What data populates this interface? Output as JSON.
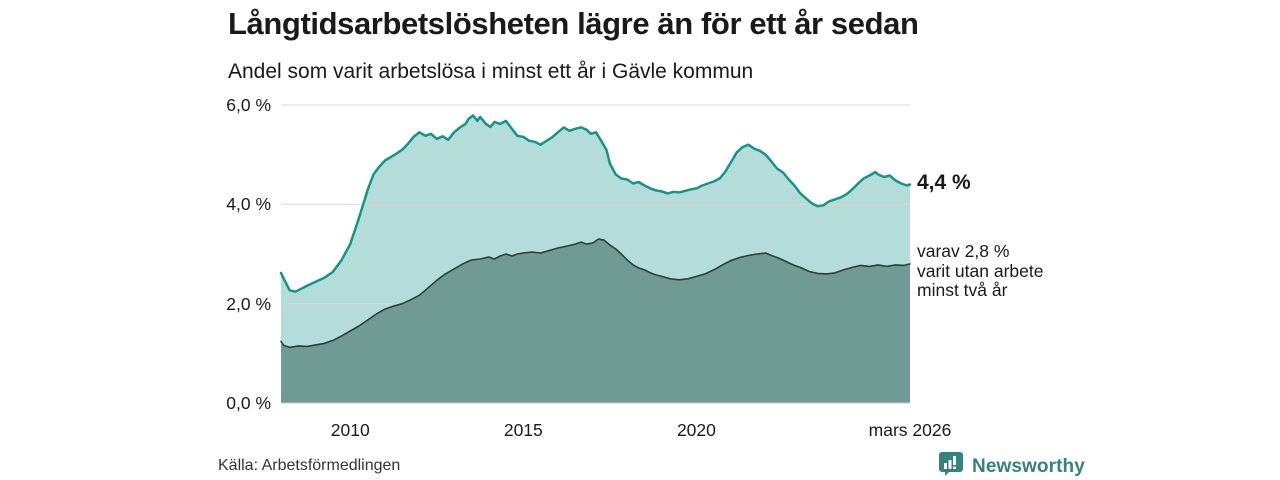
{
  "header": {
    "title": "Långtidsarbetslösheten lägre än för ett år sedan",
    "subtitle": "Andel som varit arbetslösa i minst ett år i Gävle kommun"
  },
  "chart_data": {
    "type": "area",
    "title": "Långtidsarbetslösheten lägre än för ett år sedan",
    "xlabel": "",
    "ylabel": "",
    "x_axis": {
      "range": [
        2008.0,
        2026.17
      ],
      "ticks": [
        {
          "label": "2010",
          "x": 2010
        },
        {
          "label": "2015",
          "x": 2015
        },
        {
          "label": "2020",
          "x": 2020
        },
        {
          "label": "mars 2026",
          "x": 2026.17
        }
      ]
    },
    "y_axis": {
      "range": [
        0,
        6
      ],
      "grid": true,
      "gridline_color": "#d8d8d8",
      "baseline_color": "#c9c9c9",
      "ticks": [
        {
          "label": "0,0 %",
          "value": 0
        },
        {
          "label": "2,0 %",
          "value": 2
        },
        {
          "label": "4,0 %",
          "value": 4
        },
        {
          "label": "6,0 %",
          "value": 6
        }
      ]
    },
    "series": [
      {
        "name": "minst ett år",
        "latest_value_pct": 4.4,
        "line_color": "#17948a",
        "fill_color": "rgba(23,148,138,0.32)",
        "line_width": 2.5,
        "points": [
          [
            2008.0,
            2.62
          ],
          [
            2008.08,
            2.5
          ],
          [
            2008.25,
            2.27
          ],
          [
            2008.42,
            2.24
          ],
          [
            2008.58,
            2.3
          ],
          [
            2008.75,
            2.36
          ],
          [
            2009.0,
            2.44
          ],
          [
            2009.25,
            2.52
          ],
          [
            2009.5,
            2.64
          ],
          [
            2009.75,
            2.88
          ],
          [
            2010.0,
            3.2
          ],
          [
            2010.25,
            3.72
          ],
          [
            2010.5,
            4.28
          ],
          [
            2010.67,
            4.6
          ],
          [
            2010.83,
            4.75
          ],
          [
            2011.0,
            4.88
          ],
          [
            2011.17,
            4.95
          ],
          [
            2011.33,
            5.02
          ],
          [
            2011.5,
            5.1
          ],
          [
            2011.67,
            5.22
          ],
          [
            2011.83,
            5.36
          ],
          [
            2012.0,
            5.45
          ],
          [
            2012.17,
            5.38
          ],
          [
            2012.33,
            5.42
          ],
          [
            2012.5,
            5.32
          ],
          [
            2012.67,
            5.37
          ],
          [
            2012.83,
            5.3
          ],
          [
            2013.0,
            5.45
          ],
          [
            2013.17,
            5.55
          ],
          [
            2013.33,
            5.62
          ],
          [
            2013.42,
            5.72
          ],
          [
            2013.55,
            5.79
          ],
          [
            2013.67,
            5.68
          ],
          [
            2013.75,
            5.76
          ],
          [
            2013.92,
            5.62
          ],
          [
            2014.05,
            5.56
          ],
          [
            2014.17,
            5.66
          ],
          [
            2014.33,
            5.62
          ],
          [
            2014.5,
            5.68
          ],
          [
            2014.67,
            5.52
          ],
          [
            2014.83,
            5.38
          ],
          [
            2015.0,
            5.36
          ],
          [
            2015.17,
            5.28
          ],
          [
            2015.33,
            5.26
          ],
          [
            2015.5,
            5.2
          ],
          [
            2015.67,
            5.28
          ],
          [
            2015.83,
            5.35
          ],
          [
            2016.0,
            5.45
          ],
          [
            2016.17,
            5.55
          ],
          [
            2016.33,
            5.48
          ],
          [
            2016.5,
            5.52
          ],
          [
            2016.67,
            5.55
          ],
          [
            2016.83,
            5.5
          ],
          [
            2016.95,
            5.42
          ],
          [
            2017.1,
            5.45
          ],
          [
            2017.25,
            5.28
          ],
          [
            2017.4,
            5.1
          ],
          [
            2017.5,
            4.82
          ],
          [
            2017.67,
            4.6
          ],
          [
            2017.83,
            4.52
          ],
          [
            2018.0,
            4.5
          ],
          [
            2018.17,
            4.42
          ],
          [
            2018.33,
            4.45
          ],
          [
            2018.5,
            4.38
          ],
          [
            2018.67,
            4.32
          ],
          [
            2018.83,
            4.28
          ],
          [
            2019.0,
            4.26
          ],
          [
            2019.17,
            4.22
          ],
          [
            2019.33,
            4.25
          ],
          [
            2019.5,
            4.24
          ],
          [
            2019.67,
            4.27
          ],
          [
            2019.83,
            4.3
          ],
          [
            2020.0,
            4.32
          ],
          [
            2020.17,
            4.38
          ],
          [
            2020.33,
            4.42
          ],
          [
            2020.5,
            4.46
          ],
          [
            2020.67,
            4.52
          ],
          [
            2020.83,
            4.65
          ],
          [
            2021.0,
            4.85
          ],
          [
            2021.17,
            5.05
          ],
          [
            2021.33,
            5.15
          ],
          [
            2021.5,
            5.2
          ],
          [
            2021.67,
            5.12
          ],
          [
            2021.83,
            5.08
          ],
          [
            2022.0,
            5.0
          ],
          [
            2022.17,
            4.86
          ],
          [
            2022.33,
            4.72
          ],
          [
            2022.5,
            4.64
          ],
          [
            2022.67,
            4.5
          ],
          [
            2022.83,
            4.38
          ],
          [
            2023.0,
            4.22
          ],
          [
            2023.17,
            4.12
          ],
          [
            2023.33,
            4.02
          ],
          [
            2023.5,
            3.96
          ],
          [
            2023.67,
            3.98
          ],
          [
            2023.83,
            4.06
          ],
          [
            2024.0,
            4.1
          ],
          [
            2024.17,
            4.14
          ],
          [
            2024.33,
            4.2
          ],
          [
            2024.5,
            4.3
          ],
          [
            2024.67,
            4.42
          ],
          [
            2024.83,
            4.52
          ],
          [
            2025.0,
            4.58
          ],
          [
            2025.17,
            4.65
          ],
          [
            2025.25,
            4.6
          ],
          [
            2025.42,
            4.55
          ],
          [
            2025.58,
            4.58
          ],
          [
            2025.75,
            4.48
          ],
          [
            2025.92,
            4.42
          ],
          [
            2026.08,
            4.38
          ],
          [
            2026.17,
            4.4
          ]
        ]
      },
      {
        "name": "minst två år",
        "latest_value_pct": 2.8,
        "line_color": "#2c3e3b",
        "fill_color": "#6f9b94",
        "line_width": 1.6,
        "points": [
          [
            2008.0,
            1.24
          ],
          [
            2008.08,
            1.16
          ],
          [
            2008.25,
            1.12
          ],
          [
            2008.5,
            1.15
          ],
          [
            2008.75,
            1.14
          ],
          [
            2009.0,
            1.17
          ],
          [
            2009.25,
            1.2
          ],
          [
            2009.5,
            1.26
          ],
          [
            2009.75,
            1.35
          ],
          [
            2010.0,
            1.45
          ],
          [
            2010.25,
            1.55
          ],
          [
            2010.5,
            1.67
          ],
          [
            2010.75,
            1.79
          ],
          [
            2011.0,
            1.89
          ],
          [
            2011.25,
            1.95
          ],
          [
            2011.5,
            2.0
          ],
          [
            2011.75,
            2.08
          ],
          [
            2012.0,
            2.17
          ],
          [
            2012.25,
            2.32
          ],
          [
            2012.5,
            2.47
          ],
          [
            2012.75,
            2.6
          ],
          [
            2013.0,
            2.7
          ],
          [
            2013.25,
            2.8
          ],
          [
            2013.5,
            2.88
          ],
          [
            2013.75,
            2.9
          ],
          [
            2014.0,
            2.94
          ],
          [
            2014.17,
            2.9
          ],
          [
            2014.33,
            2.96
          ],
          [
            2014.5,
            3.0
          ],
          [
            2014.67,
            2.96
          ],
          [
            2014.83,
            3.0
          ],
          [
            2015.0,
            3.02
          ],
          [
            2015.25,
            3.04
          ],
          [
            2015.5,
            3.02
          ],
          [
            2015.75,
            3.07
          ],
          [
            2016.0,
            3.12
          ],
          [
            2016.25,
            3.16
          ],
          [
            2016.5,
            3.2
          ],
          [
            2016.67,
            3.24
          ],
          [
            2016.83,
            3.2
          ],
          [
            2017.0,
            3.22
          ],
          [
            2017.17,
            3.3
          ],
          [
            2017.33,
            3.28
          ],
          [
            2017.5,
            3.18
          ],
          [
            2017.67,
            3.1
          ],
          [
            2017.83,
            3.0
          ],
          [
            2018.0,
            2.88
          ],
          [
            2018.17,
            2.78
          ],
          [
            2018.33,
            2.72
          ],
          [
            2018.5,
            2.68
          ],
          [
            2018.67,
            2.62
          ],
          [
            2018.83,
            2.58
          ],
          [
            2019.0,
            2.55
          ],
          [
            2019.25,
            2.5
          ],
          [
            2019.5,
            2.48
          ],
          [
            2019.75,
            2.5
          ],
          [
            2020.0,
            2.55
          ],
          [
            2020.25,
            2.6
          ],
          [
            2020.5,
            2.68
          ],
          [
            2020.75,
            2.78
          ],
          [
            2021.0,
            2.87
          ],
          [
            2021.25,
            2.93
          ],
          [
            2021.5,
            2.97
          ],
          [
            2021.75,
            3.0
          ],
          [
            2022.0,
            3.02
          ],
          [
            2022.17,
            2.97
          ],
          [
            2022.33,
            2.93
          ],
          [
            2022.5,
            2.88
          ],
          [
            2022.67,
            2.82
          ],
          [
            2022.83,
            2.77
          ],
          [
            2023.0,
            2.73
          ],
          [
            2023.25,
            2.65
          ],
          [
            2023.5,
            2.61
          ],
          [
            2023.75,
            2.6
          ],
          [
            2024.0,
            2.62
          ],
          [
            2024.25,
            2.68
          ],
          [
            2024.5,
            2.73
          ],
          [
            2024.75,
            2.77
          ],
          [
            2025.0,
            2.75
          ],
          [
            2025.25,
            2.78
          ],
          [
            2025.5,
            2.75
          ],
          [
            2025.75,
            2.78
          ],
          [
            2026.0,
            2.77
          ],
          [
            2026.17,
            2.8
          ]
        ]
      }
    ],
    "annotations": {
      "primary": {
        "label": "4,4 %"
      },
      "secondary": {
        "lines": [
          "varav 2,8 %",
          "varit utan arbete",
          "minst två år"
        ]
      }
    },
    "legend": "none"
  },
  "footer": {
    "source": "Källa: Arbetsförmedlingen",
    "brand": "Newsworthy",
    "brand_color": "#35837b"
  }
}
